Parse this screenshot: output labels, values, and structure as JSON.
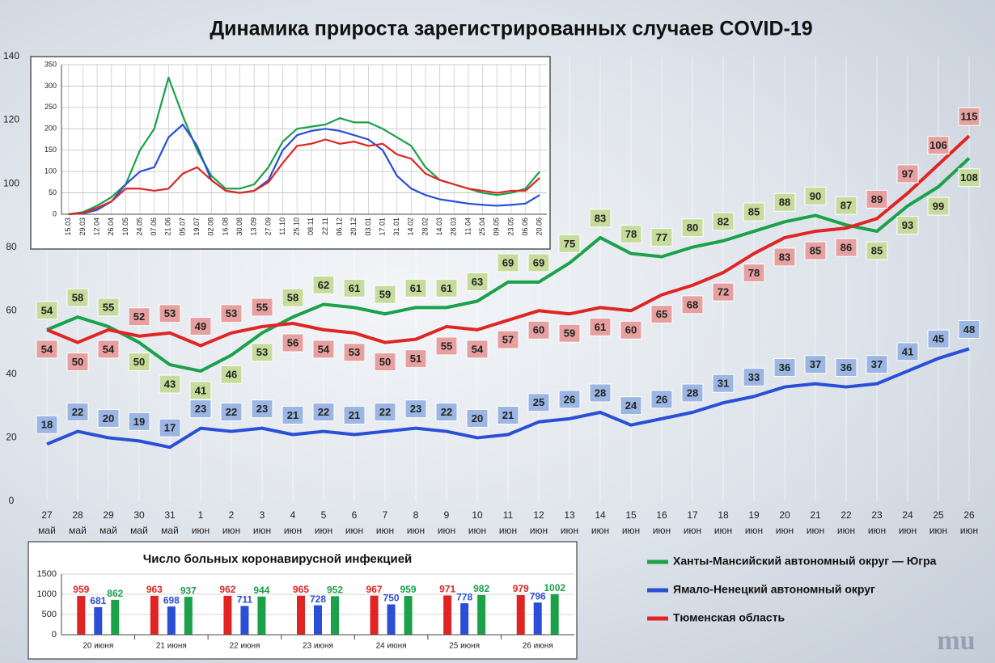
{
  "chart_data": [
    {
      "type": "line",
      "title": "Динамика прироста зарегистрированных случаев COVID-19",
      "categories": [
        "27 май",
        "28 май",
        "29 май",
        "30 май",
        "31 май",
        "1 июн",
        "2 июн",
        "3 июн",
        "4 июн",
        "5 июн",
        "6 июн",
        "7 июн",
        "8 июн",
        "9 июн",
        "10 июн",
        "11 июн",
        "12 июн",
        "13 июн",
        "14 июн",
        "15 июн",
        "16 июн",
        "17 июн",
        "18 июн",
        "19 июн",
        "20 июн",
        "21 июн",
        "22 июн",
        "23 июн",
        "24 июн",
        "25 июн",
        "26 июн"
      ],
      "series": [
        {
          "name": "Ханты-Мансийский автономный округ — Югра",
          "color": "#1aa14a",
          "label_color": "#c6dc9c",
          "values": [
            54,
            58,
            55,
            50,
            43,
            41,
            46,
            53,
            58,
            62,
            61,
            59,
            61,
            61,
            63,
            69,
            69,
            75,
            83,
            78,
            77,
            80,
            82,
            85,
            88,
            90,
            87,
            85,
            93,
            99,
            108
          ]
        },
        {
          "name": "Ямало-Ненецкий автономный округ",
          "color": "#2a4fd6",
          "label_color": "#9bb6e2",
          "values": [
            18,
            22,
            20,
            19,
            17,
            23,
            22,
            23,
            21,
            22,
            21,
            22,
            23,
            22,
            20,
            21,
            25,
            26,
            28,
            24,
            26,
            28,
            31,
            33,
            36,
            37,
            36,
            37,
            41,
            45,
            48
          ]
        },
        {
          "name": "Тюменская область",
          "color": "#e02424",
          "label_color": "#e6a0a0",
          "values": [
            54,
            50,
            54,
            52,
            53,
            49,
            53,
            55,
            56,
            54,
            53,
            50,
            51,
            55,
            54,
            57,
            60,
            59,
            61,
            60,
            65,
            68,
            72,
            78,
            83,
            85,
            86,
            89,
            97,
            106,
            115
          ]
        }
      ],
      "ylim": [
        0,
        140
      ],
      "yticks": [
        0,
        20,
        40,
        60,
        80,
        100,
        120,
        140
      ],
      "grid": true
    },
    {
      "type": "line",
      "categories": [
        "15.03",
        "29.03",
        "12.04",
        "26.04",
        "10.05",
        "24.05",
        "07.06",
        "21.06",
        "05.07",
        "19.07",
        "02.08",
        "16.08",
        "30.08",
        "13.09",
        "27.09",
        "11.10",
        "25.10",
        "08.11",
        "22.11",
        "06.12",
        "20.12",
        "03.01",
        "17.01",
        "31.01",
        "14.02",
        "28.02",
        "14.03",
        "28.03",
        "11.04",
        "25.04",
        "09.05",
        "23.05",
        "06.06",
        "20.06"
      ],
      "series": [
        {
          "color": "#1aa14a",
          "values": [
            0,
            5,
            20,
            40,
            70,
            150,
            200,
            320,
            230,
            150,
            90,
            60,
            60,
            70,
            110,
            170,
            200,
            205,
            210,
            225,
            215,
            215,
            200,
            180,
            160,
            110,
            80,
            70,
            60,
            50,
            45,
            50,
            60,
            100
          ]
        },
        {
          "color": "#2a4fd6",
          "values": [
            0,
            2,
            10,
            30,
            70,
            100,
            110,
            180,
            210,
            160,
            80,
            55,
            50,
            55,
            80,
            150,
            185,
            195,
            200,
            195,
            185,
            175,
            150,
            90,
            60,
            45,
            35,
            30,
            25,
            22,
            20,
            22,
            25,
            45
          ]
        },
        {
          "color": "#e02424",
          "values": [
            0,
            3,
            15,
            30,
            60,
            60,
            55,
            60,
            95,
            110,
            80,
            55,
            50,
            55,
            75,
            120,
            160,
            165,
            175,
            165,
            170,
            160,
            165,
            140,
            130,
            95,
            80,
            70,
            60,
            55,
            50,
            55,
            55,
            85
          ]
        }
      ],
      "ylim": [
        0,
        350
      ],
      "yticks": [
        0,
        50,
        100,
        150,
        200,
        250,
        300,
        350
      ],
      "grid": true
    },
    {
      "type": "bar",
      "title": "Число больных коронавирусной инфекцией",
      "categories": [
        "20 июня",
        "21 июня",
        "22 июня",
        "23 июня",
        "24 июня",
        "25 июня",
        "26 июня"
      ],
      "series": [
        {
          "color": "#e02424",
          "values": [
            959,
            963,
            962,
            965,
            967,
            971,
            979
          ]
        },
        {
          "color": "#2a4fd6",
          "values": [
            681,
            698,
            711,
            728,
            750,
            778,
            796
          ]
        },
        {
          "color": "#1aa14a",
          "values": [
            862,
            937,
            944,
            952,
            959,
            982,
            1002
          ]
        }
      ],
      "ylim": [
        0,
        1500
      ],
      "yticks": [
        0,
        500,
        1000,
        1500
      ],
      "grid": true
    }
  ],
  "logo_text": "mu"
}
